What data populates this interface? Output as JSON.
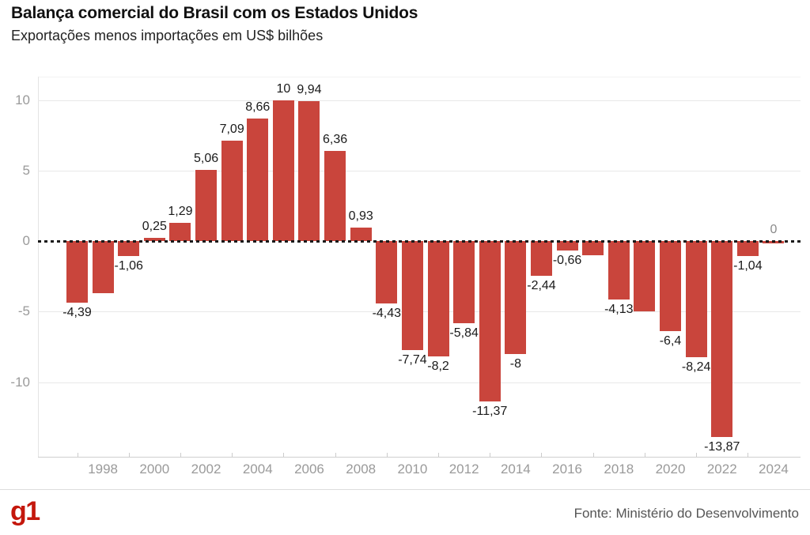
{
  "header": {
    "title": "Balança comercial do Brasil com os Estados Unidos",
    "subtitle": "Exportações menos importações em US$ bilhões"
  },
  "footer": {
    "logo_text": "g1",
    "logo_color": "#c4170c",
    "source": "Fonte: Ministério do Desenvolvimento"
  },
  "chart_data": {
    "type": "bar",
    "title": "Balança comercial do Brasil com os Estados Unidos",
    "subtitle": "Exportações menos importações em US$ bilhões",
    "unit": "US$ bilhões",
    "bar_color": "#c9453c",
    "zero_line_color": "#1a1a1a",
    "label_color": "#1a1a1a",
    "grid": true,
    "ylim": [
      -15,
      11.65
    ],
    "yticks": [
      10,
      5,
      0,
      -5,
      -10
    ],
    "ytick_labels": [
      "10",
      "5",
      "0",
      "-5",
      "-10"
    ],
    "xtick_labels": [
      "1998",
      "2000",
      "2002",
      "2004",
      "2006",
      "2008",
      "2010",
      "2012",
      "2014",
      "2016",
      "2018",
      "2020",
      "2022",
      "2024"
    ],
    "minor_tick_years": [
      1997,
      1999,
      2001,
      2003,
      2005,
      2007,
      2009,
      2011,
      2013,
      2015,
      2017,
      2019,
      2021,
      2023
    ],
    "points": [
      {
        "year": 1997,
        "value": -4.39,
        "label": "-4,39"
      },
      {
        "year": 1998,
        "value": -3.7,
        "label": ""
      },
      {
        "year": 1999,
        "value": -1.06,
        "label": "-1,06"
      },
      {
        "year": 2000,
        "value": 0.25,
        "label": "0,25"
      },
      {
        "year": 2001,
        "value": 1.29,
        "label": "1,29"
      },
      {
        "year": 2002,
        "value": 5.06,
        "label": "5,06"
      },
      {
        "year": 2003,
        "value": 7.09,
        "label": "7,09"
      },
      {
        "year": 2004,
        "value": 8.66,
        "label": "8,66"
      },
      {
        "year": 2005,
        "value": 10,
        "label": "10"
      },
      {
        "year": 2006,
        "value": 9.94,
        "label": "9,94"
      },
      {
        "year": 2007,
        "value": 6.36,
        "label": "6,36"
      },
      {
        "year": 2008,
        "value": 0.93,
        "label": "0,93"
      },
      {
        "year": 2009,
        "value": -4.43,
        "label": "-4,43"
      },
      {
        "year": 2010,
        "value": -7.74,
        "label": "-7,74"
      },
      {
        "year": 2011,
        "value": -8.2,
        "label": "-8,2"
      },
      {
        "year": 2012,
        "value": -5.84,
        "label": "-5,84"
      },
      {
        "year": 2013,
        "value": -11.37,
        "label": "-11,37"
      },
      {
        "year": 2014,
        "value": -8,
        "label": "-8"
      },
      {
        "year": 2015,
        "value": -2.44,
        "label": "-2,44"
      },
      {
        "year": 2016,
        "value": -0.66,
        "label": "-0,66"
      },
      {
        "year": 2017,
        "value": -1.0,
        "label": ""
      },
      {
        "year": 2018,
        "value": -4.13,
        "label": "-4,13"
      },
      {
        "year": 2019,
        "value": -5.0,
        "label": ""
      },
      {
        "year": 2020,
        "value": -6.4,
        "label": "-6,4"
      },
      {
        "year": 2021,
        "value": -8.24,
        "label": "-8,24"
      },
      {
        "year": 2022,
        "value": -13.87,
        "label": "-13,87"
      },
      {
        "year": 2023,
        "value": -1.04,
        "label": "-1,04"
      },
      {
        "year": 2024,
        "value": -0.15,
        "label": "0",
        "label_color": "#8a8a8a",
        "label_position": "above"
      }
    ]
  }
}
